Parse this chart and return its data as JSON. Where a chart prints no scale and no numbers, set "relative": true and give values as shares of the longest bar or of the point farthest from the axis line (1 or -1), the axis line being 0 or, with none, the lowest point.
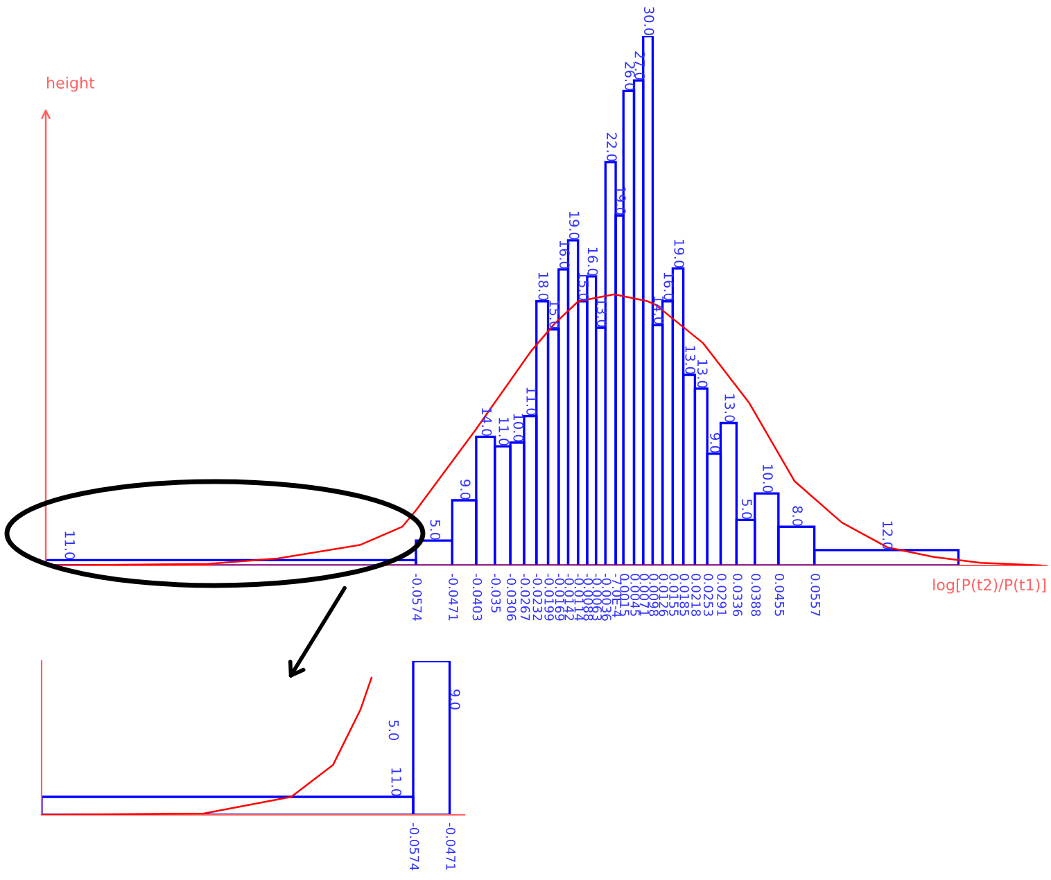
{
  "chart_data": [
    {
      "type": "histogram",
      "relative": true,
      "xlabel": "log[P(t2)/P(t1)]",
      "ylabel": "height",
      "xlim": [
        -0.1625,
        0.1217
      ],
      "xticks": [
        -0.0574,
        -0.0471,
        -0.0403,
        -0.035,
        -0.0306,
        -0.0267,
        -0.0232,
        -0.0199,
        -0.0169,
        -0.0142,
        -0.0114,
        -0.0088,
        -0.0063,
        -0.0036,
        {
          "value": -0.0007,
          "label": "-7.0E-4"
        },
        0.0015,
        0.0045,
        0.0071,
        0.0098,
        0.0126,
        0.0155,
        0.0185,
        0.0218,
        0.0253,
        0.0291,
        0.0336,
        0.0388,
        0.0455,
        0.0557
      ],
      "annotations": [
        {
          "text": "11.0",
          "x": -0.156,
          "y": 0.01
        },
        {
          "text": "5.0",
          "x": -0.05225,
          "y": 0.047
        },
        {
          "text": "9.0",
          "x": -0.0437,
          "y": 0.123
        },
        {
          "text": "14.0",
          "x": -0.03765,
          "y": 0.243
        },
        {
          "text": "11.0",
          "x": -0.0328,
          "y": 0.225
        },
        {
          "text": "10.0",
          "x": -0.02865,
          "y": 0.232
        },
        {
          "text": "11.0",
          "x": -0.02495,
          "y": 0.282
        },
        {
          "text": "18.0",
          "x": -0.02155,
          "y": 0.499
        },
        {
          "text": "15.0",
          "x": -0.0184,
          "y": 0.446
        },
        {
          "text": "16.0",
          "x": -0.01555,
          "y": 0.559
        },
        {
          "text": "19.0",
          "x": -0.0128,
          "y": 0.614
        },
        {
          "text": "15.0",
          "x": -0.0101,
          "y": 0.499
        },
        {
          "text": "16.0",
          "x": -0.00755,
          "y": 0.546
        },
        {
          "text": "13.0",
          "x": -0.00495,
          "y": 0.449
        },
        {
          "text": "22.0",
          "x": -0.00215,
          "y": 0.762
        },
        {
          "text": "19.0",
          "x": 0.0004,
          "y": 0.661
        },
        {
          "text": "26.0",
          "x": 0.003,
          "y": 0.896
        },
        {
          "text": "27.0",
          "x": 0.0058,
          "y": 0.916
        },
        {
          "text": "30.0",
          "x": 0.00845,
          "y": 1
        },
        {
          "text": "14.0",
          "x": 0.0112,
          "y": 0.454
        },
        {
          "text": "16.0",
          "x": 0.01405,
          "y": 0.499
        },
        {
          "text": "19.0",
          "x": 0.017,
          "y": 0.561
        },
        {
          "text": "13.0",
          "x": 0.02015,
          "y": 0.36
        },
        {
          "text": "13.0",
          "x": 0.0236,
          "y": 0.334
        },
        {
          "text": "9.0",
          "x": 0.0272,
          "y": 0.211
        },
        {
          "text": "13.0",
          "x": 0.03135,
          "y": 0.269
        },
        {
          "text": "5.0",
          "x": 0.0362,
          "y": 0.086
        },
        {
          "text": "10.0",
          "x": 0.04215,
          "y": 0.136
        },
        {
          "text": "8.0",
          "x": 0.0506,
          "y": 0.073
        },
        {
          "text": "12.0",
          "x": 0.07615,
          "y": 0.029
        }
      ],
      "series": [
        {
          "type": "histogram",
          "color": "#0000ff",
          "bins": [
            -0.1625,
            -0.0574,
            -0.0471,
            -0.0403,
            -0.035,
            -0.0306,
            -0.0267,
            -0.0232,
            -0.0199,
            -0.0169,
            -0.0142,
            -0.0114,
            -0.0088,
            -0.0063,
            -0.0036,
            -0.0007,
            0.0015,
            0.0045,
            0.0071,
            0.0098,
            0.0126,
            0.0155,
            0.0185,
            0.0218,
            0.0253,
            0.0291,
            0.0336,
            0.0388,
            0.0455,
            0.0557,
            0.0966
          ],
          "values": [
            0.01,
            0.047,
            0.123,
            0.243,
            0.225,
            0.232,
            0.282,
            0.499,
            0.446,
            0.559,
            0.614,
            0.499,
            0.546,
            0.449,
            0.762,
            0.661,
            0.896,
            0.916,
            1,
            0.454,
            0.499,
            0.561,
            0.36,
            0.334,
            0.211,
            0.269,
            0.086,
            0.136,
            0.073,
            0.029
          ]
        },
        {
          "type": "line",
          "color": "#ff0000",
          "x": [
            -0.1625,
            -0.1164,
            -0.0967,
            -0.0731,
            -0.0613,
            -0.0574,
            -0.0405,
            -0.0247,
            -0.018,
            -0.0113,
            -0.0011,
            0.0084,
            0.0107,
            0.0241,
            0.0371,
            0.0501,
            0.0635,
            0.0765,
            0.0895,
            0.1029,
            0.12
          ],
          "values": [
            0,
            0.003,
            0.013,
            0.039,
            0.073,
            0.104,
            0.256,
            0.405,
            0.457,
            0.499,
            0.512,
            0.499,
            0.492,
            0.42,
            0.308,
            0.159,
            0.081,
            0.034,
            0.016,
            0.005,
            0
          ]
        }
      ]
    },
    {
      "type": "histogram",
      "relative": true,
      "xlim": [
        -0.1625,
        -0.0429
      ],
      "xticks": [
        -0.0574,
        -0.0471
      ],
      "annotations": [
        {
          "text": "11.0",
          "x": -0.0625,
          "y": 0.117
        },
        "5.0",
        "9.0"
      ],
      "series": [
        {
          "type": "histogram",
          "color": "#0000ff",
          "bins": [
            -0.1625,
            -0.0574,
            -0.0471
          ],
          "values": [
            0.117,
            1
          ]
        },
        {
          "type": "line",
          "color": "#ff0000",
          "x": [
            -0.1625,
            -0.1166,
            -0.0919,
            -0.0801,
            -0.0723,
            -0.0692
          ],
          "values": [
            0,
            0.009,
            0.117,
            0.324,
            0.685,
            0.892
          ]
        }
      ]
    }
  ]
}
